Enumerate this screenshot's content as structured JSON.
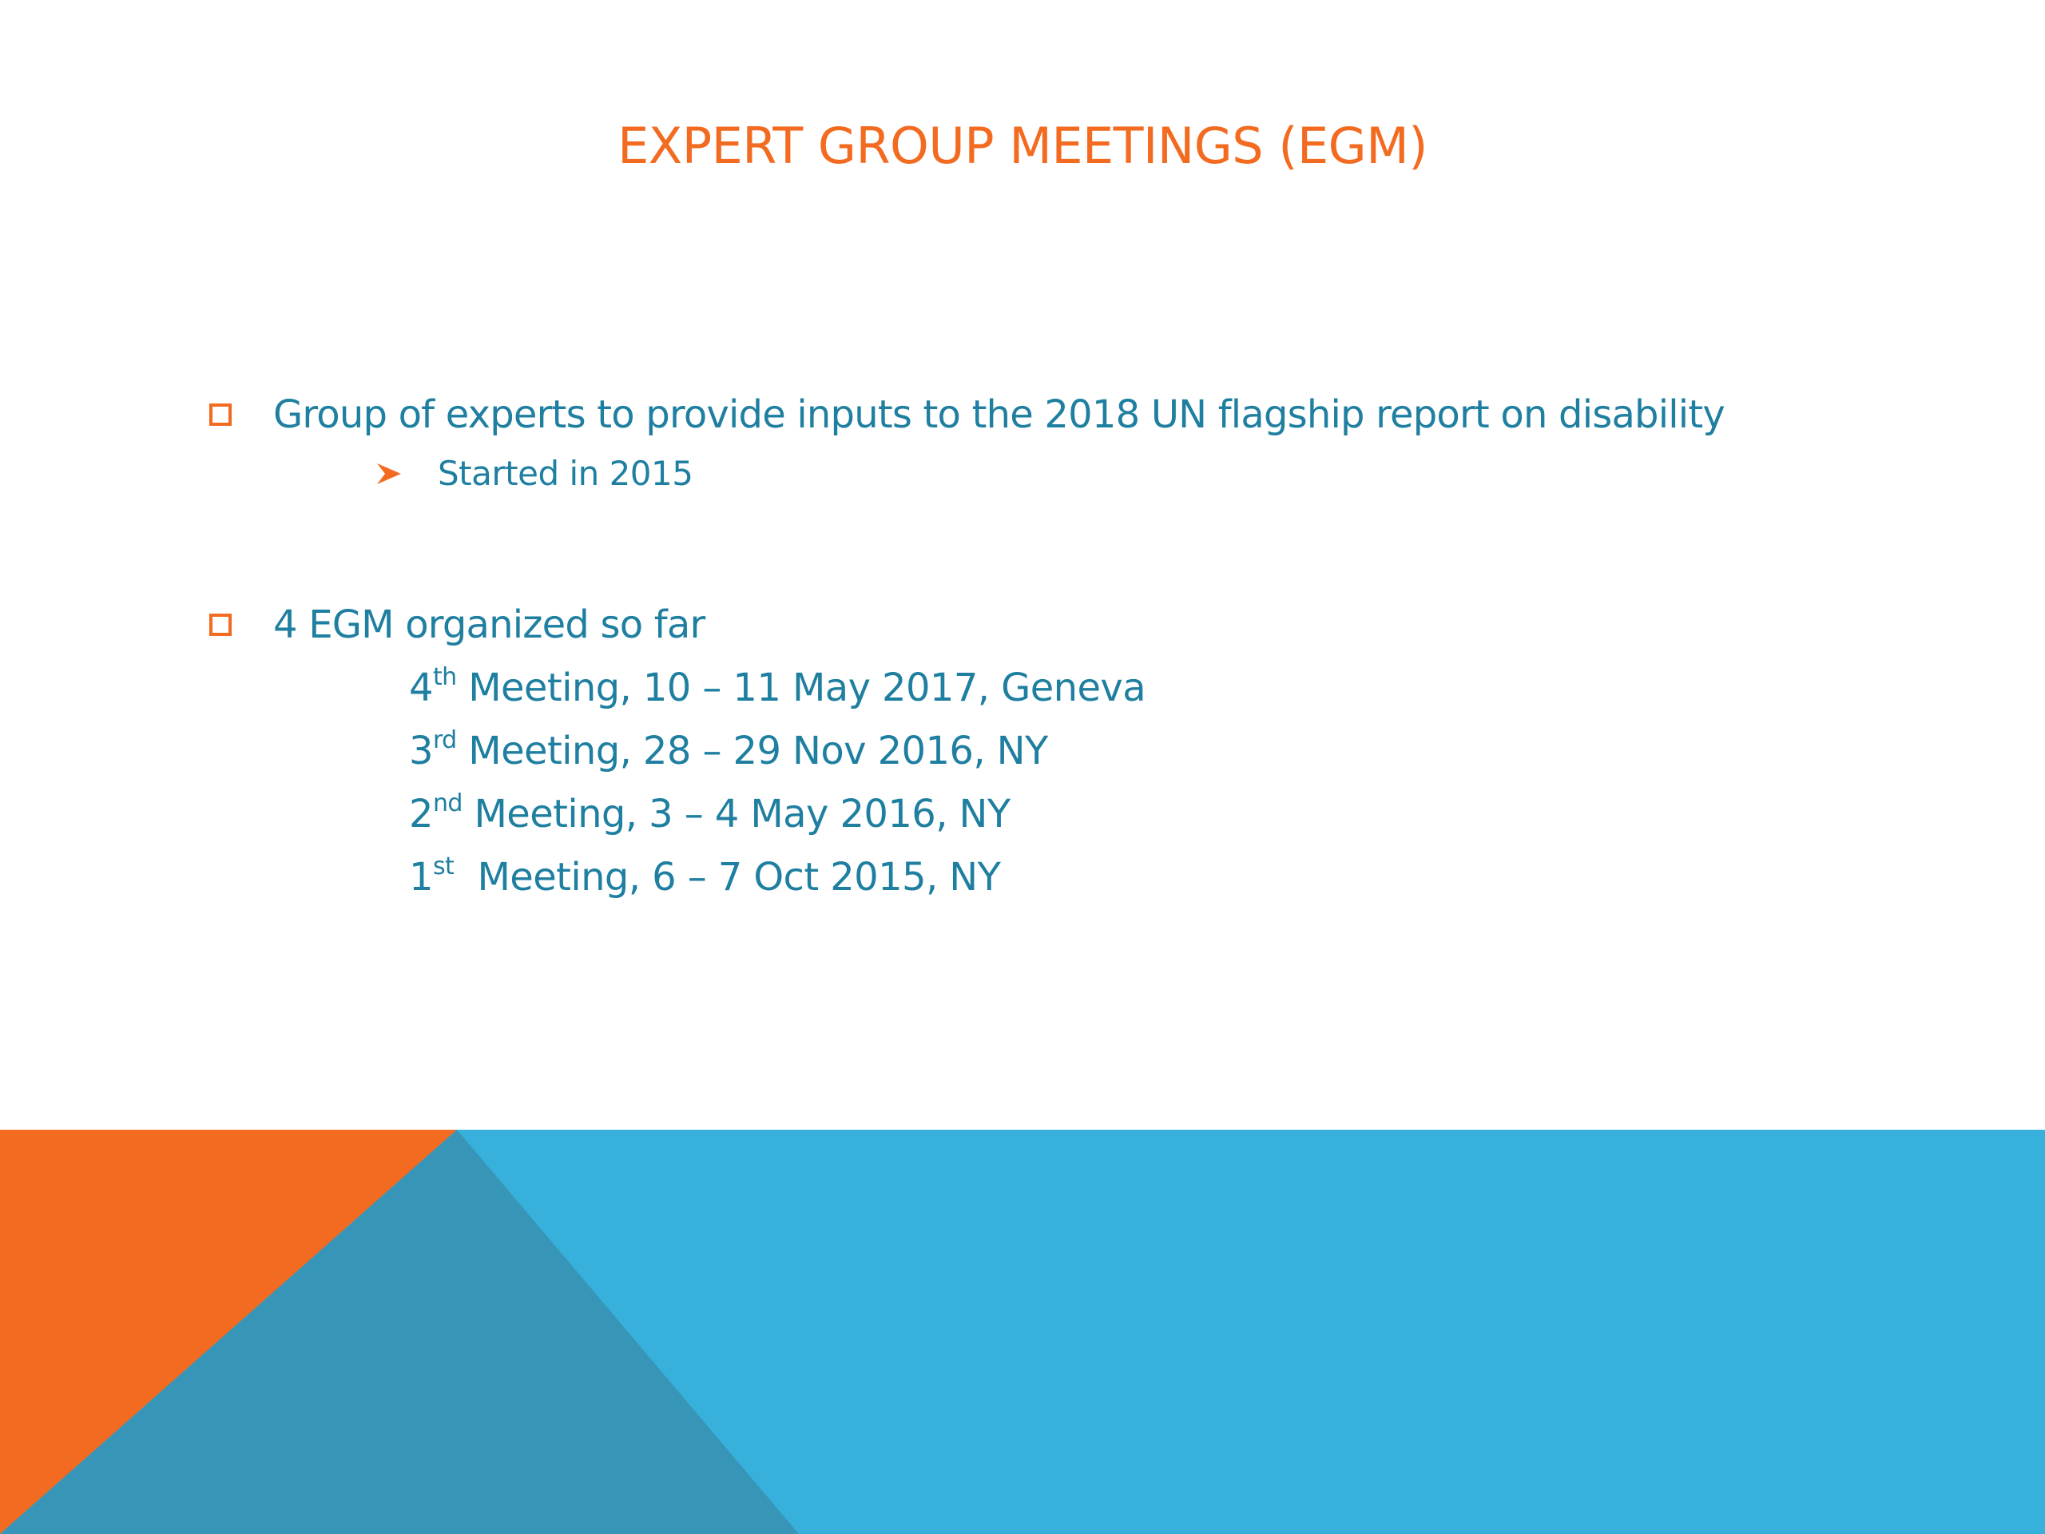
{
  "slide": {
    "title": "EXPERT GROUP MEETINGS (EGM)",
    "bullets": [
      {
        "text": "Group of experts to provide inputs to the 2018 UN flagship report on disability",
        "sub": "Started in 2015"
      },
      {
        "text": "4 EGM organized so far"
      }
    ],
    "meetings": [
      {
        "num": "4",
        "suffix": "th",
        "rest": " Meeting, 10 – 11 May 2017, Geneva"
      },
      {
        "num": "3",
        "suffix": "rd",
        "rest": " Meeting, 28 – 29 Nov 2016, NY"
      },
      {
        "num": "2",
        "suffix": "nd",
        "rest": " Meeting, 3 – 4 May 2016, NY"
      },
      {
        "num": "1",
        "suffix": "st",
        "rest": "  Meeting, 6 – 7 Oct 2015, NY"
      }
    ]
  },
  "colors": {
    "accent_orange": "#f26b21",
    "text_blue": "#1f7fa0",
    "band_light_blue": "#38b0dc",
    "band_dark_blue": "#3795b8"
  },
  "icons": {
    "level1_bullet": "hollow-square-icon",
    "level2_bullet": "arrowhead-icon"
  }
}
